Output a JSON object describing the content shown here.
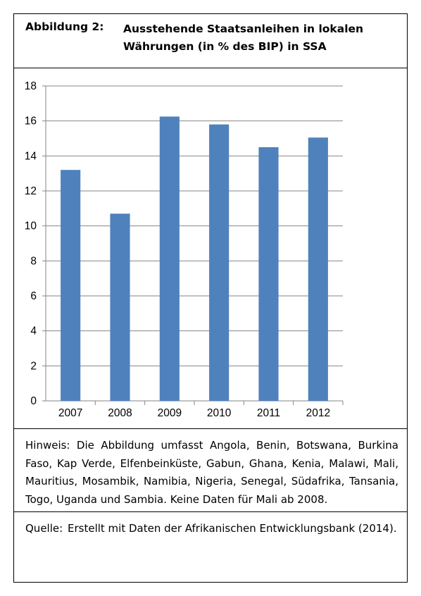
{
  "figure": {
    "label": "Abbildung 2:",
    "title": "Ausstehende Staatsanleihen in lokalen Währungen (in % des BIP) in SSA"
  },
  "chart_data": {
    "type": "bar",
    "categories": [
      "2007",
      "2008",
      "2009",
      "2010",
      "2011",
      "2012"
    ],
    "values": [
      13.2,
      10.7,
      16.25,
      15.8,
      14.5,
      15.05
    ],
    "ylim": [
      0,
      18
    ],
    "yticks": [
      0,
      2,
      4,
      6,
      8,
      10,
      12,
      14,
      16,
      18
    ],
    "grid": true,
    "bar_color": "#4f81bd",
    "grid_color": "#868686"
  },
  "note": "Hinweis: Die Abbildung umfasst Angola, Benin, Botswana, Burkina Faso, Kap Verde, Elfenbeinküste, Gabun, Ghana, Kenia, Malawi, Mali, Mauritius, Mosambik, Namibia, Nigeria, Senegal, Südafrika, Tansania, Togo, Uganda und Sambia. Keine Daten für Mali ab 2008.",
  "source": {
    "label": "Quelle:",
    "text": "Erstellt mit Daten der Afrikanischen Entwicklungsbank (2014)."
  }
}
